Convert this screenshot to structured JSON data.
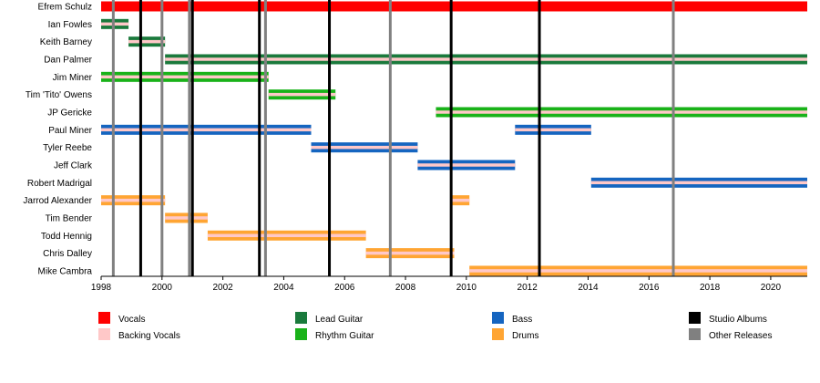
{
  "chart_data": {
    "type": "timeline",
    "xlim": [
      1998,
      2021.2
    ],
    "x_ticks": [
      1998,
      2000,
      2002,
      2004,
      2006,
      2008,
      2010,
      2012,
      2014,
      2016,
      2018,
      2020
    ],
    "roles": {
      "vocals": {
        "label": "Vocals",
        "color": "#ff0000"
      },
      "backing_vocals": {
        "label": "Backing Vocals",
        "color": "#ffc8c8"
      },
      "lead_guitar": {
        "label": "Lead Guitar",
        "color": "#1a7a3c"
      },
      "rhythm_guitar": {
        "label": "Rhythm Guitar",
        "color": "#19b219"
      },
      "bass": {
        "label": "Bass",
        "color": "#1565c0"
      },
      "drums": {
        "label": "Drums",
        "color": "#ffa533"
      },
      "studio_albums": {
        "label": "Studio Albums",
        "color": "#000000"
      },
      "other_releases": {
        "label": "Other Releases",
        "color": "#808080"
      }
    },
    "members": [
      {
        "name": "Efrem Schulz",
        "bars": [
          {
            "start": 1998.0,
            "end": 2021.2,
            "role": "vocals"
          }
        ]
      },
      {
        "name": "Ian Fowles",
        "bars": [
          {
            "start": 1998.0,
            "end": 1998.9,
            "role": "lead_guitar",
            "second": "backing_vocals"
          }
        ]
      },
      {
        "name": "Keith Barney",
        "bars": [
          {
            "start": 1998.9,
            "end": 2000.1,
            "role": "lead_guitar",
            "second": "backing_vocals"
          }
        ]
      },
      {
        "name": "Dan Palmer",
        "bars": [
          {
            "start": 2000.1,
            "end": 2021.2,
            "role": "lead_guitar",
            "second": "backing_vocals"
          }
        ]
      },
      {
        "name": "Jim Miner",
        "bars": [
          {
            "start": 1998.0,
            "end": 2003.5,
            "role": "rhythm_guitar",
            "second": "backing_vocals"
          }
        ]
      },
      {
        "name": "Tim 'Tito' Owens",
        "bars": [
          {
            "start": 2003.5,
            "end": 2005.7,
            "role": "rhythm_guitar",
            "second": "backing_vocals"
          }
        ]
      },
      {
        "name": "JP Gericke",
        "bars": [
          {
            "start": 2009.0,
            "end": 2021.2,
            "role": "rhythm_guitar",
            "second": "backing_vocals"
          }
        ]
      },
      {
        "name": "Paul Miner",
        "bars": [
          {
            "start": 1998.0,
            "end": 2004.9,
            "role": "bass",
            "second": "backing_vocals"
          },
          {
            "start": 2011.6,
            "end": 2014.1,
            "role": "bass",
            "second": "backing_vocals"
          }
        ]
      },
      {
        "name": "Tyler Reebe",
        "bars": [
          {
            "start": 2004.9,
            "end": 2008.4,
            "role": "bass",
            "second": "backing_vocals"
          }
        ]
      },
      {
        "name": "Jeff Clark",
        "bars": [
          {
            "start": 2008.4,
            "end": 2011.6,
            "role": "bass",
            "second": "backing_vocals"
          }
        ]
      },
      {
        "name": "Robert Madrigal",
        "bars": [
          {
            "start": 2014.1,
            "end": 2021.2,
            "role": "bass",
            "second": "backing_vocals"
          }
        ]
      },
      {
        "name": "Jarrod Alexander",
        "bars": [
          {
            "start": 1998.0,
            "end": 2000.1,
            "role": "drums",
            "second": "backing_vocals"
          },
          {
            "start": 2009.5,
            "end": 2010.1,
            "role": "drums",
            "second": "backing_vocals"
          }
        ]
      },
      {
        "name": "Tim Bender",
        "bars": [
          {
            "start": 2000.1,
            "end": 2001.5,
            "role": "drums",
            "second": "backing_vocals"
          }
        ]
      },
      {
        "name": "Todd Hennig",
        "bars": [
          {
            "start": 2001.5,
            "end": 2006.7,
            "role": "drums",
            "second": "backing_vocals"
          }
        ]
      },
      {
        "name": "Chris Dalley",
        "bars": [
          {
            "start": 2006.7,
            "end": 2009.6,
            "role": "drums",
            "second": "backing_vocals"
          }
        ]
      },
      {
        "name": "Mike Cambra",
        "bars": [
          {
            "start": 2010.1,
            "end": 2021.2,
            "role": "drums",
            "second": "backing_vocals"
          }
        ]
      }
    ],
    "releases": [
      {
        "year": 1998.4,
        "type": "other_releases"
      },
      {
        "year": 1999.3,
        "type": "studio_albums"
      },
      {
        "year": 2000.0,
        "type": "other_releases"
      },
      {
        "year": 2000.9,
        "type": "other_releases"
      },
      {
        "year": 2001.0,
        "type": "studio_albums"
      },
      {
        "year": 2003.2,
        "type": "studio_albums"
      },
      {
        "year": 2003.4,
        "type": "other_releases"
      },
      {
        "year": 2005.5,
        "type": "studio_albums"
      },
      {
        "year": 2007.5,
        "type": "other_releases"
      },
      {
        "year": 2009.5,
        "type": "studio_albums"
      },
      {
        "year": 2012.4,
        "type": "studio_albums"
      },
      {
        "year": 2016.8,
        "type": "other_releases"
      }
    ],
    "legend": {
      "placement": "bottom",
      "columns": [
        [
          "vocals",
          "backing_vocals"
        ],
        [
          "lead_guitar",
          "rhythm_guitar"
        ],
        [
          "bass",
          "drums"
        ],
        [
          "studio_albums",
          "other_releases"
        ]
      ]
    },
    "grid": false
  }
}
